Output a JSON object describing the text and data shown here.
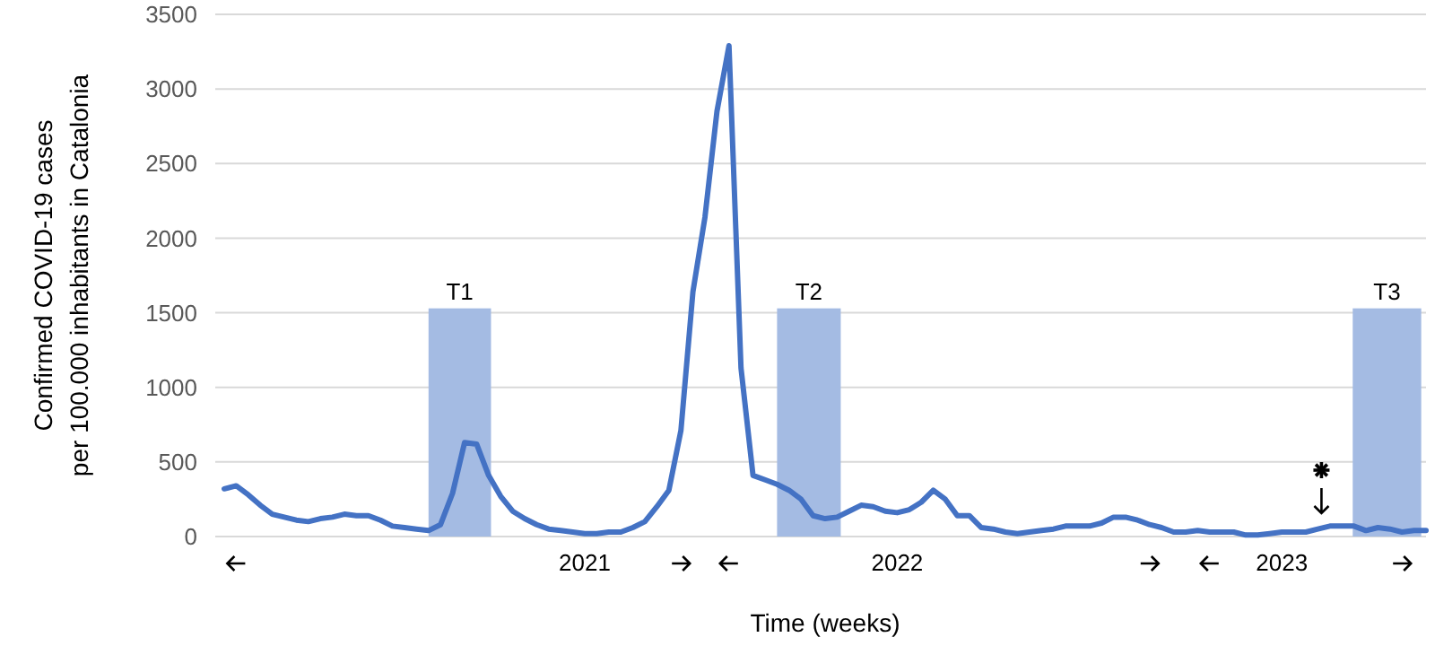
{
  "chart_data": {
    "type": "line",
    "xlabel": "Time (weeks)",
    "ylabel": "Confirmed COVID-19 cases per 100.000 inhabitants in Catalonia",
    "categories": [
      null,
      null,
      null,
      null,
      null,
      null,
      null,
      null,
      null,
      null,
      null,
      null,
      null,
      null,
      null,
      null,
      null,
      null,
      null,
      null,
      null,
      null,
      null,
      null,
      null,
      null,
      null,
      null,
      null,
      null,
      null,
      null,
      null,
      null,
      null,
      null,
      null,
      null,
      null,
      null,
      null,
      null,
      null,
      null,
      null,
      null,
      null,
      null,
      null,
      null,
      null,
      null,
      null,
      null,
      null,
      null,
      null,
      null,
      null,
      null,
      null,
      null,
      null,
      null,
      null,
      null,
      null,
      null,
      null,
      null,
      null,
      null,
      null,
      null,
      null,
      null,
      null,
      null,
      null,
      null,
      null,
      null,
      null,
      null,
      null,
      null,
      null,
      null,
      null,
      null,
      null,
      null,
      null,
      null,
      null,
      null,
      null,
      null,
      null,
      null,
      null
    ],
    "series": [
      {
        "color": "#4472c4",
        "values": [
          320,
          340,
          280,
          210,
          150,
          130,
          110,
          100,
          120,
          130,
          150,
          140,
          140,
          110,
          70,
          60,
          50,
          40,
          80,
          290,
          630,
          620,
          410,
          270,
          170,
          120,
          80,
          50,
          40,
          30,
          20,
          20,
          30,
          30,
          60,
          100,
          200,
          310,
          710,
          1640,
          2140,
          2850,
          3290,
          1130,
          410,
          380,
          350,
          310,
          250,
          140,
          120,
          130,
          170,
          210,
          200,
          170,
          160,
          180,
          230,
          310,
          250,
          140,
          140,
          60,
          50,
          30,
          20,
          30,
          40,
          50,
          70,
          70,
          70,
          90,
          130,
          130,
          110,
          80,
          60,
          30,
          30,
          40,
          30,
          30,
          30,
          10,
          10,
          20,
          30,
          30,
          30,
          50,
          70,
          70,
          70,
          40,
          60,
          50,
          30,
          40,
          40
        ]
      }
    ],
    "ylim": [
      0,
      3500
    ],
    "yticks": [
      0,
      500,
      1000,
      1500,
      2000,
      2500,
      3000,
      3500
    ],
    "grid": "y",
    "tick_labels": "y",
    "marker": "none",
    "line_style": "solid",
    "annotations": [
      "T1",
      "T2",
      "T3",
      "2021",
      "2022",
      "2023"
    ]
  }
}
